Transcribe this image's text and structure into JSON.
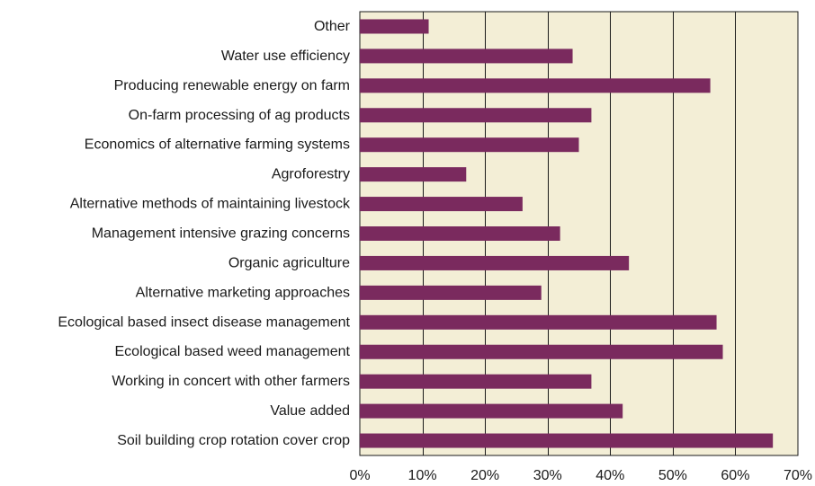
{
  "chart_data": {
    "type": "bar",
    "orientation": "horizontal",
    "title": "",
    "xlabel": "",
    "ylabel": "",
    "categories": [
      "Other",
      "Water use efficiency",
      "Producing renewable energy on farm",
      "On-farm processing of ag products",
      "Economics of alternative farming systems",
      "Agroforestry",
      "Alternative methods of maintaining livestock",
      "Management intensive grazing concerns",
      "Organic agriculture",
      "Alternative marketing approaches",
      "Ecological based insect disease management",
      "Ecological based weed management",
      "Working in concert with other farmers",
      "Value added",
      "Soil building crop rotation cover crop"
    ],
    "values": [
      11,
      34,
      56,
      37,
      35,
      17,
      26,
      32,
      43,
      29,
      57,
      58,
      37,
      42,
      66
    ],
    "unit": "%",
    "xlim": [
      0,
      70
    ],
    "xticks": [
      0,
      10,
      20,
      30,
      40,
      50,
      60,
      70
    ],
    "xtick_labels": [
      "0%",
      "10%",
      "20%",
      "30%",
      "40%",
      "50%",
      "60%",
      "70%"
    ],
    "grid": true,
    "legend": "none",
    "colors": {
      "bar": "#7a2a5e",
      "plot_background": "#f3eed6",
      "grid": "#1a1a1a",
      "text": "#1a1a1a"
    }
  }
}
